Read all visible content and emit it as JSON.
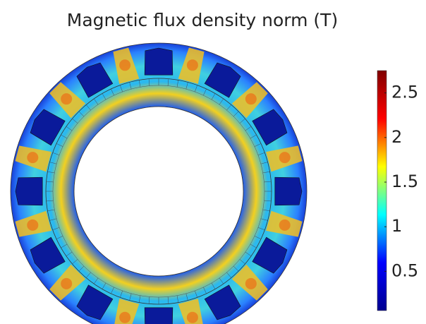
{
  "chart_data": {
    "type": "field",
    "title": "Magnetic flux density norm (T)",
    "colorbar": {
      "colormap": "jet",
      "clim": [
        0.06,
        2.75
      ],
      "ticks": [
        0.5,
        1,
        1.5,
        2,
        2.5
      ]
    }
  }
}
